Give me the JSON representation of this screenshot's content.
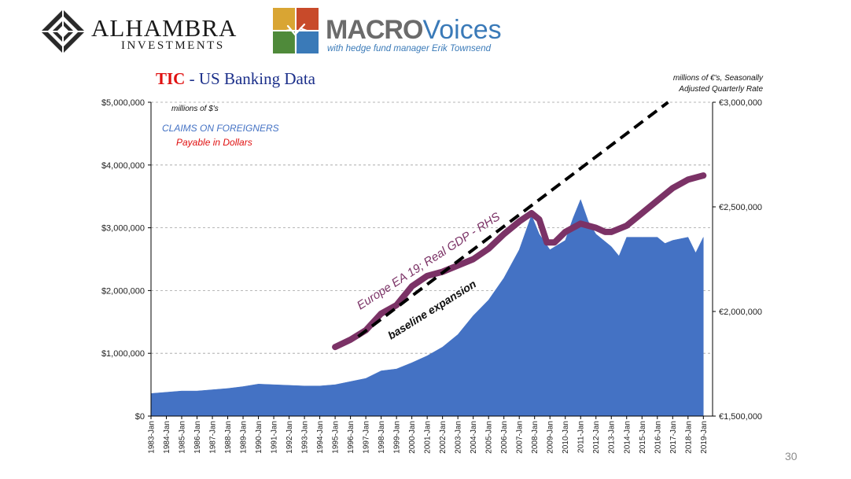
{
  "logos": {
    "alhambra_name": "ALHAMBRA",
    "alhambra_sub": "INVESTMENTS",
    "macro_word": "MACRO",
    "voices_word": "Voices",
    "macro_tagline": "with hedge fund manager Erik Townsend"
  },
  "title_red": "TIC",
  "title_rest": " - US Banking Data",
  "slide_number": "30",
  "chart_data": {
    "type": "area",
    "title": "TIC - US Banking Data",
    "left_axis": {
      "units_note": "millions of $'s",
      "ylim": [
        0,
        5000000
      ],
      "ticks": [
        0,
        1000000,
        2000000,
        3000000,
        4000000,
        5000000
      ],
      "tick_labels": [
        "$0",
        "$1,000,000",
        "$2,000,000",
        "$3,000,000",
        "$4,000,000",
        "$5,000,000"
      ]
    },
    "right_axis": {
      "units_note_line1": "millions of €'s, Seasonally",
      "units_note_line2": "Adjusted Quarterly Rate",
      "ylim": [
        1500000,
        3000000
      ],
      "ticks": [
        1500000,
        2000000,
        2500000,
        3000000
      ],
      "tick_labels": [
        "€1,500,000",
        "€2,000,000",
        "€2,500,000",
        "€3,000,000"
      ]
    },
    "x_labels": [
      "1983-Jan",
      "1984-Jan",
      "1985-Jan",
      "1986-Jan",
      "1987-Jan",
      "1988-Jan",
      "1989-Jan",
      "1990-Jan",
      "1991-Jan",
      "1992-Jan",
      "1993-Jan",
      "1994-Jan",
      "1995-Jan",
      "1996-Jan",
      "1997-Jan",
      "1998-Jan",
      "1999-Jan",
      "2000-Jan",
      "2001-Jan",
      "2002-Jan",
      "2003-Jan",
      "2004-Jan",
      "2005-Jan",
      "2006-Jan",
      "2007-Jan",
      "2008-Jan",
      "2009-Jan",
      "2010-Jan",
      "2011-Jan",
      "2012-Jan",
      "2013-Jan",
      "2014-Jan",
      "2015-Jan",
      "2016-Jan",
      "2017-Jan",
      "2018-Jan",
      "2019-Jan"
    ],
    "grid": "horizontal dashed",
    "legend_texts": {
      "line1": "CLAIMS ON FOREIGNERS",
      "line2": "Payable in Dollars"
    },
    "series": [
      {
        "name": "CLAIMS ON FOREIGNERS",
        "axis": "left",
        "style": "area",
        "color": "#4472c4",
        "points": [
          [
            1983.0,
            360000
          ],
          [
            1984.0,
            380000
          ],
          [
            1985.0,
            400000
          ],
          [
            1986.0,
            400000
          ],
          [
            1987.0,
            420000
          ],
          [
            1988.0,
            440000
          ],
          [
            1989.0,
            470000
          ],
          [
            1990.0,
            510000
          ],
          [
            1991.0,
            500000
          ],
          [
            1992.0,
            490000
          ],
          [
            1993.0,
            480000
          ],
          [
            1994.0,
            480000
          ],
          [
            1995.0,
            500000
          ],
          [
            1996.0,
            550000
          ],
          [
            1997.0,
            600000
          ],
          [
            1998.0,
            720000
          ],
          [
            1999.0,
            750000
          ],
          [
            2000.0,
            850000
          ],
          [
            2001.0,
            960000
          ],
          [
            2002.0,
            1100000
          ],
          [
            2003.0,
            1300000
          ],
          [
            2004.0,
            1600000
          ],
          [
            2005.0,
            1850000
          ],
          [
            2006.0,
            2200000
          ],
          [
            2007.0,
            2650000
          ],
          [
            2007.8,
            3200000
          ],
          [
            2008.3,
            2900000
          ],
          [
            2009.0,
            2650000
          ],
          [
            2010.0,
            2800000
          ],
          [
            2010.5,
            3150000
          ],
          [
            2011.0,
            3450000
          ],
          [
            2011.5,
            3100000
          ],
          [
            2012.0,
            2900000
          ],
          [
            2012.5,
            2800000
          ],
          [
            2013.0,
            2700000
          ],
          [
            2013.5,
            2550000
          ],
          [
            2014.0,
            2850000
          ],
          [
            2015.0,
            2850000
          ],
          [
            2016.0,
            2850000
          ],
          [
            2016.5,
            2750000
          ],
          [
            2017.0,
            2800000
          ],
          [
            2018.0,
            2850000
          ],
          [
            2018.5,
            2600000
          ],
          [
            2019.0,
            2850000
          ]
        ]
      },
      {
        "name": "Europe EA 19; Real GDP - RHS",
        "axis": "right",
        "style": "line",
        "color": "#7b3266",
        "points": [
          [
            1995.0,
            1830000
          ],
          [
            1996.0,
            1865000
          ],
          [
            1997.0,
            1910000
          ],
          [
            1998.0,
            1990000
          ],
          [
            1999.0,
            2030000
          ],
          [
            2000.0,
            2120000
          ],
          [
            2001.0,
            2170000
          ],
          [
            2002.0,
            2190000
          ],
          [
            2003.0,
            2220000
          ],
          [
            2004.0,
            2250000
          ],
          [
            2005.0,
            2300000
          ],
          [
            2006.0,
            2370000
          ],
          [
            2007.0,
            2430000
          ],
          [
            2007.8,
            2470000
          ],
          [
            2008.3,
            2440000
          ],
          [
            2008.8,
            2330000
          ],
          [
            2009.3,
            2330000
          ],
          [
            2010.0,
            2380000
          ],
          [
            2011.0,
            2420000
          ],
          [
            2012.0,
            2400000
          ],
          [
            2012.6,
            2380000
          ],
          [
            2013.0,
            2380000
          ],
          [
            2014.0,
            2410000
          ],
          [
            2015.0,
            2470000
          ],
          [
            2016.0,
            2530000
          ],
          [
            2017.0,
            2590000
          ],
          [
            2018.0,
            2630000
          ],
          [
            2019.0,
            2650000
          ]
        ]
      },
      {
        "name": "baseline expansion",
        "axis": "right",
        "style": "dashed",
        "color": "#000000",
        "points": [
          [
            1996.5,
            1880000
          ],
          [
            2016.7,
            3000000
          ]
        ]
      }
    ]
  }
}
